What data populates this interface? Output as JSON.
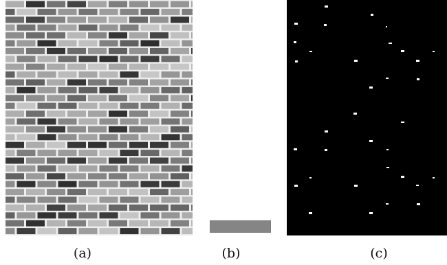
{
  "figure": {
    "panels": [
      {
        "id": "a",
        "caption": "(a)",
        "content": "brick-wall-texture"
      },
      {
        "id": "b",
        "caption": "(b)",
        "content": "texture-patch"
      },
      {
        "id": "c",
        "caption": "(c)",
        "content": "binary-detection-map"
      }
    ]
  },
  "colors": {
    "background": "#ffffff",
    "mortar": "#eeeeee",
    "patch": "#858585",
    "mask_background": "#000000",
    "mask_foreground": "#ffffff"
  }
}
